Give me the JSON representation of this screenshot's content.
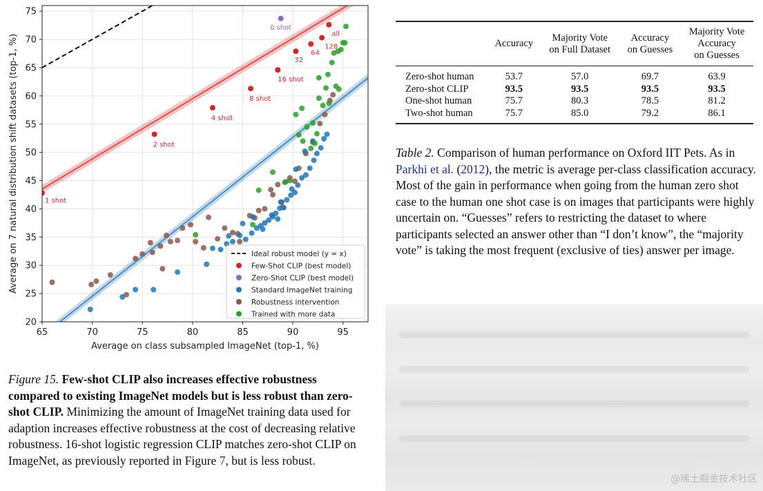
{
  "figure": {
    "caption_label": "Figure 15.",
    "caption_bold": "Few-shot CLIP also increases effective robustness compared to existing ImageNet models but is less robust than zero-shot CLIP.",
    "caption_text_1": "Minimizing the amount of ImageNet training data used for adaption increases effective robustness at the cost of decreasing relative robustness. 16-shot logistic regression CLIP matches zero-shot CLIP on ImageNet, as previously reported in Figure",
    "caption_ref": "7",
    "caption_text_2": ", but is less robust."
  },
  "chart_data": {
    "type": "scatter",
    "xlabel": "Average on class subsampled ImageNet (top-1, %)",
    "ylabel": "Average on 7 natural distribution shift datasets (top-1, %)",
    "xlim": [
      65,
      97.5
    ],
    "ylim": [
      20,
      76
    ],
    "xticks": [
      65,
      70,
      75,
      80,
      85,
      90,
      95
    ],
    "yticks": [
      20,
      25,
      30,
      35,
      40,
      45,
      50,
      55,
      60,
      65,
      70,
      75
    ],
    "grid": true,
    "legend_position": "bottom-right",
    "colors": {
      "ideal": "#111111",
      "few_shot": "#d62728",
      "zero_shot": "#9467bd",
      "standard": "#1f77b4",
      "robustness": "#8c564b",
      "more_data": "#2ca02c"
    },
    "legend": [
      {
        "key": "ideal",
        "label": "Ideal robust model (y = x)"
      },
      {
        "key": "few_shot",
        "label": "Few-Shot CLIP (best model)"
      },
      {
        "key": "zero_shot",
        "label": "Zero-Shot CLIP (best model)"
      },
      {
        "key": "standard",
        "label": "Standard ImageNet training"
      },
      {
        "key": "robustness",
        "label": "Robustness intervention"
      },
      {
        "key": "more_data",
        "label": "Trained with more data"
      }
    ],
    "ideal_line": [
      [
        65,
        65
      ],
      [
        97.5,
        97.5
      ]
    ],
    "few_shot_fit": [
      [
        65,
        43.5
      ],
      [
        97.5,
        78.2
      ]
    ],
    "standard_fit": [
      [
        65,
        17.5
      ],
      [
        97.5,
        63.2
      ]
    ],
    "few_shot_points": [
      {
        "x": 65.0,
        "y": 42.8,
        "label": "1 shot"
      },
      {
        "x": 76.2,
        "y": 53.2,
        "label": "2 shot"
      },
      {
        "x": 82.0,
        "y": 57.9,
        "label": "4 shot"
      },
      {
        "x": 85.8,
        "y": 61.3,
        "label": "8 shot"
      },
      {
        "x": 88.5,
        "y": 64.6,
        "label": "16 shot"
      },
      {
        "x": 90.3,
        "y": 67.9,
        "label": "32"
      },
      {
        "x": 91.8,
        "y": 69.2,
        "label": "64"
      },
      {
        "x": 92.9,
        "y": 70.3,
        "label": "128"
      },
      {
        "x": 93.6,
        "y": 72.6,
        "label": "all"
      }
    ],
    "zero_shot_points": [
      {
        "x": 88.8,
        "y": 73.7,
        "label": "0 shot"
      }
    ],
    "standard_points": [
      [
        69.8,
        22.2
      ],
      [
        73.0,
        24.4
      ],
      [
        74.3,
        25.7
      ],
      [
        76.1,
        25.7
      ],
      [
        78.5,
        28.8
      ],
      [
        81.4,
        30.2
      ],
      [
        82.0,
        33.0
      ],
      [
        82.8,
        32.8
      ],
      [
        83.4,
        33.8
      ],
      [
        84.0,
        34.2
      ],
      [
        84.7,
        35.3
      ],
      [
        85.3,
        34.6
      ],
      [
        85.9,
        35.7
      ],
      [
        86.4,
        36.6
      ],
      [
        86.8,
        37.0
      ],
      [
        87.2,
        37.5
      ],
      [
        87.6,
        38.0
      ],
      [
        88.0,
        38.6
      ],
      [
        88.3,
        39.2
      ],
      [
        88.7,
        40.1
      ],
      [
        89.1,
        40.2
      ],
      [
        89.4,
        41.6
      ],
      [
        89.8,
        42.4
      ],
      [
        90.2,
        42.9
      ],
      [
        90.5,
        44.2
      ],
      [
        90.9,
        45.5
      ],
      [
        91.3,
        46.0
      ],
      [
        91.7,
        47.2
      ],
      [
        92.1,
        48.6
      ],
      [
        92.4,
        49.8
      ],
      [
        92.8,
        50.8
      ],
      [
        93.1,
        52.4
      ],
      [
        93.4,
        53.2
      ],
      [
        92.0,
        52.0
      ],
      [
        91.2,
        50.2
      ],
      [
        90.3,
        47.0
      ],
      [
        88.8,
        41.2
      ],
      [
        87.9,
        38.9
      ],
      [
        86.0,
        38.6
      ],
      [
        85.0,
        37.4
      ],
      [
        83.6,
        35.2
      ],
      [
        87.0,
        36.4
      ],
      [
        88.5,
        38.2
      ],
      [
        89.9,
        43.5
      ]
    ],
    "robustness_points": [
      [
        66.0,
        27.0
      ],
      [
        69.9,
        26.6
      ],
      [
        70.4,
        27.2
      ],
      [
        71.8,
        28.3
      ],
      [
        73.4,
        24.8
      ],
      [
        74.3,
        31.2
      ],
      [
        75.0,
        32.0
      ],
      [
        75.8,
        34.0
      ],
      [
        76.0,
        32.3
      ],
      [
        76.8,
        33.4
      ],
      [
        77.0,
        29.4
      ],
      [
        77.4,
        35.3
      ],
      [
        77.8,
        34.2
      ],
      [
        78.5,
        34.4
      ],
      [
        79.0,
        36.6
      ],
      [
        79.8,
        37.2
      ],
      [
        80.3,
        34.2
      ],
      [
        81.1,
        33.1
      ],
      [
        81.6,
        38.5
      ],
      [
        82.5,
        34.7
      ],
      [
        83.2,
        36.6
      ],
      [
        84.0,
        35.8
      ],
      [
        84.5,
        35.6
      ],
      [
        85.7,
        38.8
      ],
      [
        86.6,
        39.7
      ],
      [
        87.2,
        40.0
      ],
      [
        87.8,
        43.4
      ],
      [
        88.5,
        44.3
      ],
      [
        88.9,
        41.2
      ],
      [
        89.3,
        44.8
      ],
      [
        89.7,
        45.5
      ],
      [
        90.2,
        44.9
      ],
      [
        90.6,
        47.2
      ],
      [
        91.3,
        49.8
      ],
      [
        92.0,
        51.8
      ],
      [
        92.7,
        55.1
      ],
      [
        93.2,
        56.7
      ],
      [
        93.7,
        59.2
      ],
      [
        94.0,
        60.2
      ],
      [
        84.7,
        34.2
      ],
      [
        86.2,
        38.4
      ],
      [
        88.0,
        42.5
      ],
      [
        89.0,
        40.3
      ]
    ],
    "more_data_points": [
      [
        80.3,
        35.4
      ],
      [
        86.0,
        37.2
      ],
      [
        86.6,
        43.3
      ],
      [
        88.0,
        46.5
      ],
      [
        89.2,
        44.7
      ],
      [
        89.7,
        45.0
      ],
      [
        90.3,
        56.7
      ],
      [
        90.9,
        57.8
      ],
      [
        91.0,
        52.0
      ],
      [
        91.4,
        54.5
      ],
      [
        91.8,
        50.7
      ],
      [
        92.0,
        55.2
      ],
      [
        92.4,
        53.3
      ],
      [
        92.6,
        63.2
      ],
      [
        93.0,
        58.3
      ],
      [
        93.3,
        61.4
      ],
      [
        93.6,
        58.7
      ],
      [
        93.9,
        65.9
      ],
      [
        94.1,
        67.6
      ],
      [
        94.3,
        61.7
      ],
      [
        94.5,
        67.9
      ],
      [
        94.8,
        68.2
      ],
      [
        95.0,
        69.4
      ],
      [
        95.2,
        69.4
      ],
      [
        95.3,
        72.3
      ],
      [
        94.6,
        61.2
      ],
      [
        93.5,
        63.8
      ],
      [
        92.6,
        59.6
      ],
      [
        92.2,
        51.6
      ],
      [
        90.6,
        53.1
      ]
    ]
  },
  "table": {
    "headers": [
      {
        "lines": [
          "Accuracy"
        ]
      },
      {
        "lines": [
          "Majority Vote",
          "on Full Dataset"
        ]
      },
      {
        "lines": [
          "Accuracy",
          "on Guesses"
        ]
      },
      {
        "lines": [
          "Majority Vote",
          "Accuracy",
          "on Guesses"
        ]
      }
    ],
    "rows": [
      {
        "label": "Zero-shot human",
        "values": [
          "53.7",
          "57.0",
          "69.7",
          "63.9"
        ],
        "bold": false
      },
      {
        "label": "Zero-shot CLIP",
        "values": [
          "93.5",
          "93.5",
          "93.5",
          "93.5"
        ],
        "bold": true
      },
      {
        "label": "One-shot human",
        "values": [
          "75.7",
          "80.3",
          "78.5",
          "81.2"
        ],
        "bold": false
      },
      {
        "label": "Two-shot human",
        "values": [
          "75.7",
          "85.0",
          "79.2",
          "86.1"
        ],
        "bold": false
      }
    ],
    "caption_label": "Table 2.",
    "caption_text_1": "Comparison of human performance on Oxford IIT Pets. As in",
    "caption_cite": "Parkhi et al.",
    "caption_cite_open": "(",
    "caption_cite_year": "2012",
    "caption_cite_close": ")",
    "caption_text_2": ", the metric is average per-class classification accuracy. Most of the gain in performance when going from the human zero shot case to the human one shot case is on images that participants were highly uncertain on. “Guesses” refers to restricting the dataset to where participants selected an answer other than “I don’t know”, the “majority vote” is taking the most frequent (exclusive of ties) answer per image."
  },
  "watermark": "@稀土掘金技术社区"
}
